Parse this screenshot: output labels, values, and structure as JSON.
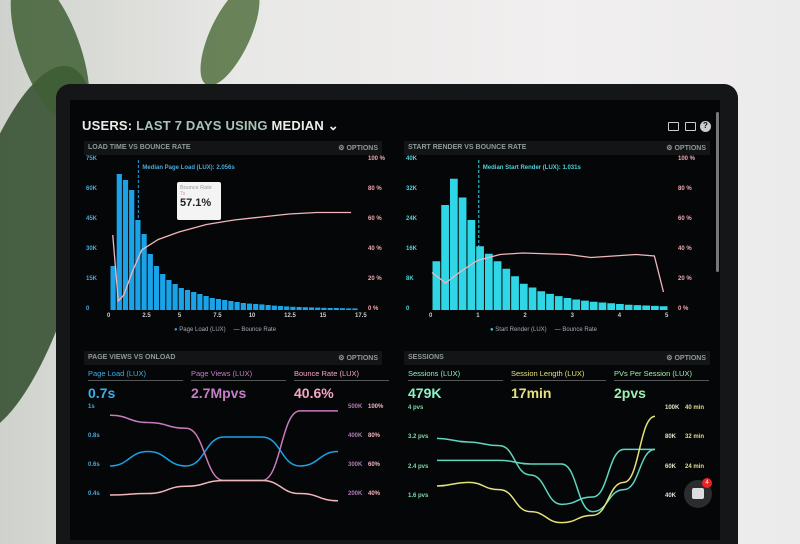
{
  "header": {
    "title_users": "USERS:",
    "title_rest": "LAST 7 DAYS",
    "title_using": "USING",
    "title_median": "MEDIAN",
    "icons": [
      "monitor-icon",
      "image-icon",
      "help-icon"
    ]
  },
  "colors": {
    "page_load": "#1aa3e8",
    "start_render": "#2fd6e6",
    "bounce": "#f0b6bd",
    "page_views": "#c77bbf",
    "sessions": "#5fd6c0",
    "session_length": "#e6e27a"
  },
  "options_label": "OPTIONS",
  "chart_data": [
    {
      "type": "bar",
      "title": "LOAD TIME VS BOUNCE RATE",
      "annotation": "Median Page Load (LUX): 2.056s",
      "tooltip": {
        "label": "Bounce Rate",
        "sub": "7s",
        "value": "57.1%"
      },
      "y_ticks": [
        "75K",
        "60K",
        "45K",
        "30K",
        "15K",
        "0"
      ],
      "y2_ticks": [
        "100 %",
        "80 %",
        "60 %",
        "40 %",
        "20 %",
        "0 %"
      ],
      "x_ticks": [
        "0",
        "2.5",
        "5",
        "7.5",
        "10",
        "12.5",
        "15",
        "17.5"
      ],
      "xlim": [
        0,
        18
      ],
      "ylim": [
        0,
        75000
      ],
      "legend": [
        "Page Load (LUX)",
        "Bounce Rate"
      ],
      "median": 2.056,
      "bars": [
        22,
        68,
        65,
        60,
        45,
        38,
        28,
        22,
        18,
        15,
        13,
        11,
        10,
        9,
        8,
        7,
        6,
        5.5,
        5,
        4.5,
        4,
        3.5,
        3.2,
        3,
        2.8,
        2.5,
        2.2,
        2,
        1.8,
        1.6,
        1.5,
        1.4,
        1.3,
        1.2,
        1.1,
        1,
        1,
        0.9,
        0.8,
        0.8
      ],
      "bounce": [
        [
          0.2,
          50
        ],
        [
          0.6,
          6
        ],
        [
          1,
          10
        ],
        [
          1.6,
          25
        ],
        [
          2.3,
          40
        ],
        [
          3.5,
          47
        ],
        [
          5,
          52
        ],
        [
          7,
          57
        ],
        [
          9,
          60
        ],
        [
          11,
          62
        ],
        [
          13,
          64
        ],
        [
          15,
          65
        ],
        [
          17.5,
          65
        ]
      ]
    },
    {
      "type": "bar",
      "title": "START RENDER VS BOUNCE RATE",
      "annotation": "Median Start Render (LUX): 1.031s",
      "y_ticks": [
        "40K",
        "32K",
        "24K",
        "16K",
        "8K",
        "0"
      ],
      "y2_ticks": [
        "100 %",
        "80 %",
        "60 %",
        "40 %",
        "20 %",
        "0 %"
      ],
      "x_ticks": [
        "0",
        "1",
        "2",
        "3",
        "4",
        "5"
      ],
      "xlim": [
        0,
        5.2
      ],
      "ylim": [
        0,
        40000
      ],
      "legend": [
        "Start Render (LUX)",
        "Bounce Rate"
      ],
      "median": 1.031,
      "bars": [
        13,
        28,
        35,
        30,
        24,
        17,
        15,
        13,
        11,
        9,
        7,
        6,
        5,
        4.3,
        3.7,
        3.2,
        2.8,
        2.5,
        2.2,
        2,
        1.8,
        1.6,
        1.4,
        1.3,
        1.2,
        1.1,
        1
      ],
      "bounce": [
        [
          0,
          25
        ],
        [
          0.3,
          18
        ],
        [
          0.6,
          25
        ],
        [
          1,
          33
        ],
        [
          1.5,
          37
        ],
        [
          2,
          38
        ],
        [
          3,
          37
        ],
        [
          3.5,
          35
        ],
        [
          4,
          36
        ],
        [
          4.5,
          37
        ],
        [
          4.9,
          36
        ],
        [
          5.1,
          12
        ]
      ]
    },
    {
      "type": "line",
      "title": "PAGE VIEWS VS ONLOAD",
      "stats": [
        {
          "label": "Page Load (LUX)",
          "value": "0.7s"
        },
        {
          "label": "Page Views (LUX)",
          "value": "2.7Mpvs"
        },
        {
          "label": "Bounce Rate (LUX)",
          "value": "40.6%"
        }
      ],
      "y_ticks": [
        "1s",
        "0.8s",
        "0.6s",
        "0.4s"
      ],
      "y2_ticks": [
        "500K",
        "400K",
        "300K",
        "200K"
      ],
      "y3_ticks": [
        "100%",
        "80%",
        "60%",
        "40%"
      ],
      "series": [
        {
          "values": [
            0.6,
            0.7,
            0.6,
            0.8,
            0.8,
            0.6,
            0.7
          ]
        },
        {
          "values": [
            0.95,
            0.9,
            0.86,
            0.5,
            0.5,
            0.98,
            0.98
          ]
        },
        {
          "values": [
            0.4,
            0.41,
            0.46,
            0.5,
            0.5,
            0.41,
            0.36
          ]
        }
      ]
    },
    {
      "type": "line",
      "title": "SESSIONS",
      "stats": [
        {
          "label": "Sessions (LUX)",
          "value": "479K"
        },
        {
          "label": "Session Length (LUX)",
          "value": "17min"
        },
        {
          "label": "PVs Per Session (LUX)",
          "value": "2pvs"
        }
      ],
      "y_ticks": [
        "4 pvs",
        "3.2 pvs",
        "2.4 pvs",
        "1.6 pvs"
      ],
      "y2_ticks": [
        "100K",
        "80K",
        "60K",
        "40K"
      ],
      "y3_ticks": [
        "40 min",
        "32 min",
        "24 min",
        ""
      ],
      "series": [
        {
          "values": [
            3.2,
            3.1,
            3.0,
            2.2,
            1.4,
            1.6,
            2.9,
            2.9
          ]
        },
        {
          "values": [
            2.6,
            2.6,
            2.6,
            2.5,
            2.5,
            1.2,
            1.8,
            2.9
          ]
        },
        {
          "values": [
            1.9,
            2.0,
            1.8,
            1.2,
            0.9,
            1.1,
            2.0,
            3.8
          ]
        }
      ]
    }
  ],
  "chat": {
    "badge": "4"
  }
}
